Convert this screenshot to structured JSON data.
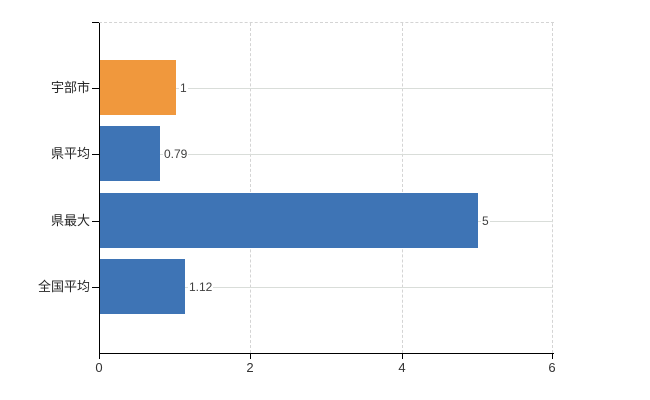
{
  "chart_data": {
    "type": "bar",
    "orientation": "horizontal",
    "title": "",
    "categories": [
      "宇部市",
      "県平均",
      "県最大",
      "全国平均"
    ],
    "values": [
      1,
      0.79,
      5,
      1.12
    ],
    "value_labels": [
      "1",
      "0.79",
      "5",
      "1.12"
    ],
    "highlight_index": 0,
    "xlim": [
      0,
      6
    ],
    "x_ticks": [
      0,
      2,
      4,
      6
    ],
    "x_tick_labels": [
      "0",
      "2",
      "4",
      "6"
    ],
    "legend": "none",
    "grid": {
      "vertical": "dashed",
      "horizontal": "solid",
      "top_border": "dashed"
    }
  },
  "colors": {
    "bar_default": "#3E74B5",
    "bar_highlight": "#F0983D",
    "grid_solid": "#D9DDD9",
    "grid_dashed": "#D4D4D4",
    "axis": "#000000",
    "category_text": "#262626",
    "tick_text": "#333333",
    "value_text": "#3F3F3F",
    "background": "#FFFFFF"
  }
}
